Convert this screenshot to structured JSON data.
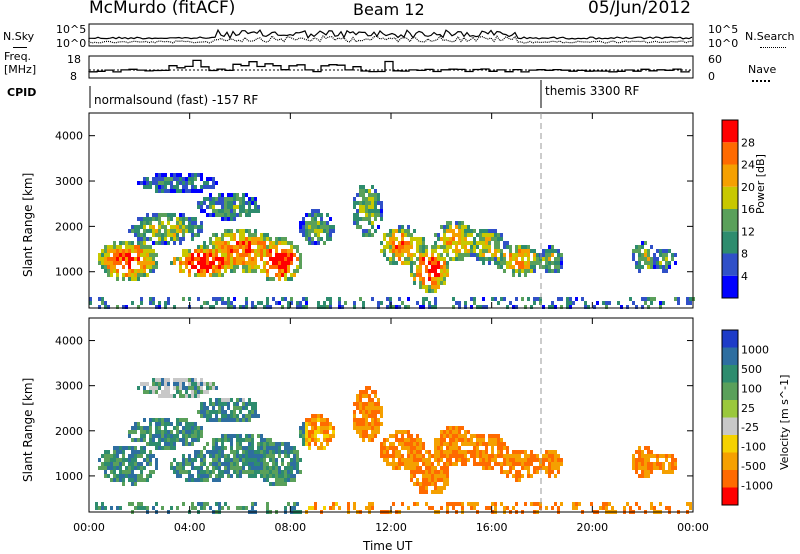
{
  "header": {
    "station": "McMurdo (fitACF)",
    "beam": "Beam 12",
    "date": "05/Jun/2012"
  },
  "noise_panel": {
    "left_label": "N.Sky",
    "right_label": "N.Search",
    "left_ticks": [
      "10^5",
      "10^0"
    ],
    "right_ticks": [
      "10^5",
      "10^0"
    ]
  },
  "freq_panel": {
    "left_label_1": "Freq.",
    "left_label_2": "[MHz]",
    "right_label": "Nave",
    "left_ticks": [
      "18",
      "8"
    ],
    "right_ticks": [
      "60",
      "0"
    ]
  },
  "cpid": {
    "label": "CPID",
    "mode_1": "normalsound (fast) -157 RF",
    "mode_2": "themis 3300 RF"
  },
  "colors": {
    "power_scale": [
      "#0000ff",
      "#3050c8",
      "#2e8c6e",
      "#5aa05a",
      "#c8c800",
      "#f5a000",
      "#ff6a00",
      "#ff0000"
    ],
    "velocity_scale": [
      "#1e3cc8",
      "#2e6ea0",
      "#2e8c6e",
      "#5aa05a",
      "#9ac83c",
      "#c8c8c8",
      "#f5d200",
      "#f5a000",
      "#ff6a00",
      "#ff0000"
    ]
  },
  "chart_data": [
    {
      "type": "heatmap",
      "name": "power",
      "ylabel": "Slant Range [km]",
      "y_ticks": [
        "1000",
        "2000",
        "3000",
        "4000"
      ],
      "ylim": [
        200,
        4500
      ],
      "colorbar_label": "Power [dB]",
      "colorbar_ticks": [
        "4",
        "8",
        "12",
        "16",
        "20",
        "24",
        "28"
      ],
      "colorbar_range": [
        0,
        32
      ]
    },
    {
      "type": "heatmap",
      "name": "velocity",
      "ylabel": "Slant Range [km]",
      "y_ticks": [
        "1000",
        "2000",
        "3000",
        "4000"
      ],
      "ylim": [
        200,
        4500
      ],
      "colorbar_label": "Velocity [m s^-1]",
      "colorbar_ticks": [
        "1000",
        "500",
        "100",
        "25",
        "-25",
        "-100",
        "-500",
        "-1000"
      ]
    }
  ],
  "x_axis": {
    "label": "Time UT",
    "ticks": [
      "00:00",
      "04:00",
      "08:00",
      "12:00",
      "16:00",
      "20:00",
      "00:00"
    ],
    "xlim_hours": [
      0,
      24
    ]
  }
}
